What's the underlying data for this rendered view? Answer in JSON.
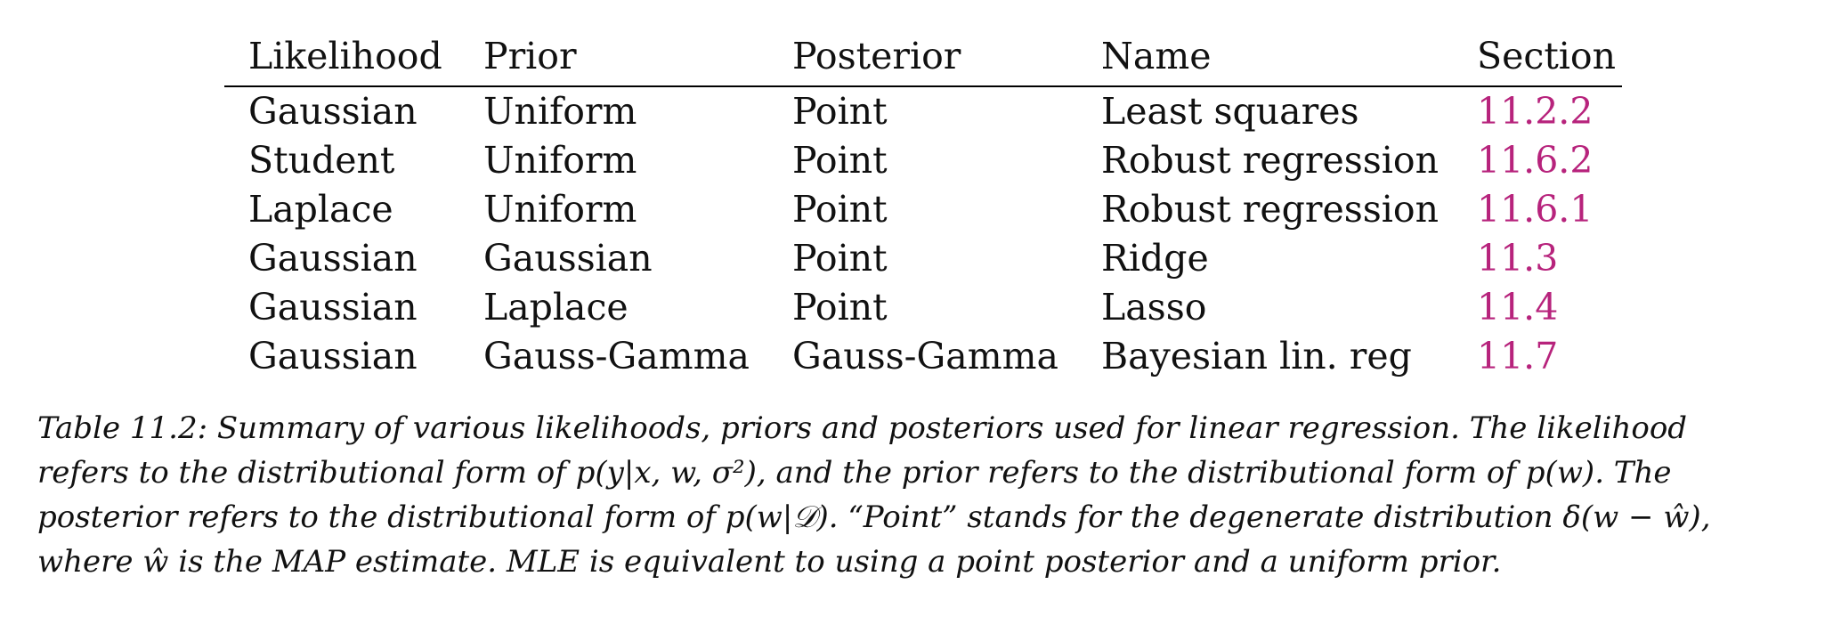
{
  "table": {
    "headers": [
      "Likelihood",
      "Prior",
      "Posterior",
      "Name",
      "Section"
    ],
    "rows": [
      {
        "likelihood": "Gaussian",
        "prior": "Uniform",
        "posterior": "Point",
        "name": "Least squares",
        "section": "11.2.2"
      },
      {
        "likelihood": "Student",
        "prior": "Uniform",
        "posterior": "Point",
        "name": "Robust regression",
        "section": "11.6.2"
      },
      {
        "likelihood": "Laplace",
        "prior": "Uniform",
        "posterior": "Point",
        "name": "Robust regression",
        "section": "11.6.1"
      },
      {
        "likelihood": "Gaussian",
        "prior": "Gaussian",
        "posterior": "Point",
        "name": "Ridge",
        "section": "11.3"
      },
      {
        "likelihood": "Gaussian",
        "prior": "Laplace",
        "posterior": "Point",
        "name": "Lasso",
        "section": "11.4"
      },
      {
        "likelihood": "Gaussian",
        "prior": "Gauss-Gamma",
        "posterior": "Gauss-Gamma",
        "name": "Bayesian lin. reg",
        "section": "11.7"
      }
    ]
  },
  "caption": {
    "lines": [
      "Table 11.2: Summary of various likelihoods, priors and posteriors used for linear regression. The likelihood",
      "refers to the distributional form of p(y|x, w, σ²), and the prior refers to the distributional form of p(w). The",
      "posterior refers to the distributional form of p(w|𝒟). “Point” stands for the degenerate distribution δ(w − ŵ),",
      "where ŵ is the MAP estimate. MLE is equivalent to using a point posterior and a uniform prior."
    ]
  },
  "colors": {
    "link": "#b7237c",
    "text": "#111111"
  }
}
